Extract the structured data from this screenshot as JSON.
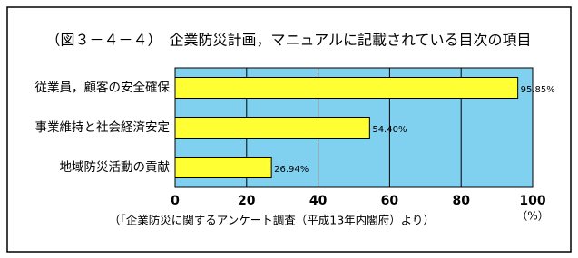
{
  "chart_data": {
    "type": "bar",
    "orientation": "horizontal",
    "title": "（図３－４－４）　企業防災計画，マニュアルに記載されている目次の項目",
    "categories": [
      "従業員，顧客の安全確保",
      "事業維持と社会経済安定",
      "地域防災活動の貢献"
    ],
    "values": [
      95.85,
      54.4,
      26.94
    ],
    "value_labels": [
      "95.85%",
      "54.40%",
      "26.94%"
    ],
    "color": "#ffff33",
    "xlim": [
      0,
      100
    ],
    "xticks": [
      0,
      20,
      40,
      60,
      80,
      100
    ],
    "x_label": "（%）",
    "note": "（「企業防災に関するアンケート調査（平成13年内閣府）より）",
    "grid": true
  }
}
